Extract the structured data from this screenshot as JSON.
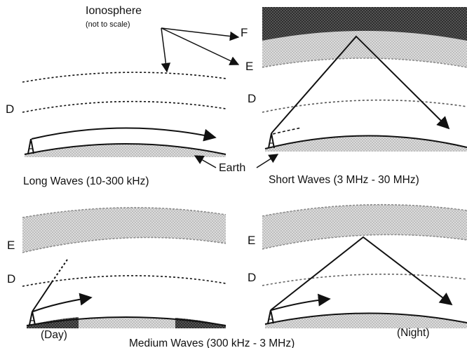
{
  "labels": {
    "ionosphere": "Ionosphere",
    "ionosphere_note": "(not to scale)",
    "earth": "Earth",
    "layer_f": "F",
    "layer_e": "E",
    "layer_d": "D"
  },
  "panels": {
    "long": {
      "caption": "Long Waves (10-300 kHz)"
    },
    "short": {
      "caption": "Short Waves (3 MHz - 30 MHz)"
    },
    "medium": {
      "caption": "Medium Waves (300 kHz - 3 MHz)",
      "day": "(Day)",
      "night": "(Night)"
    }
  },
  "colors": {
    "ink": "#111111",
    "e_layer_fill": "#d9d9d9",
    "f_layer_fill": "#0d0d0d",
    "ground_fill": "#cfcfcf"
  }
}
